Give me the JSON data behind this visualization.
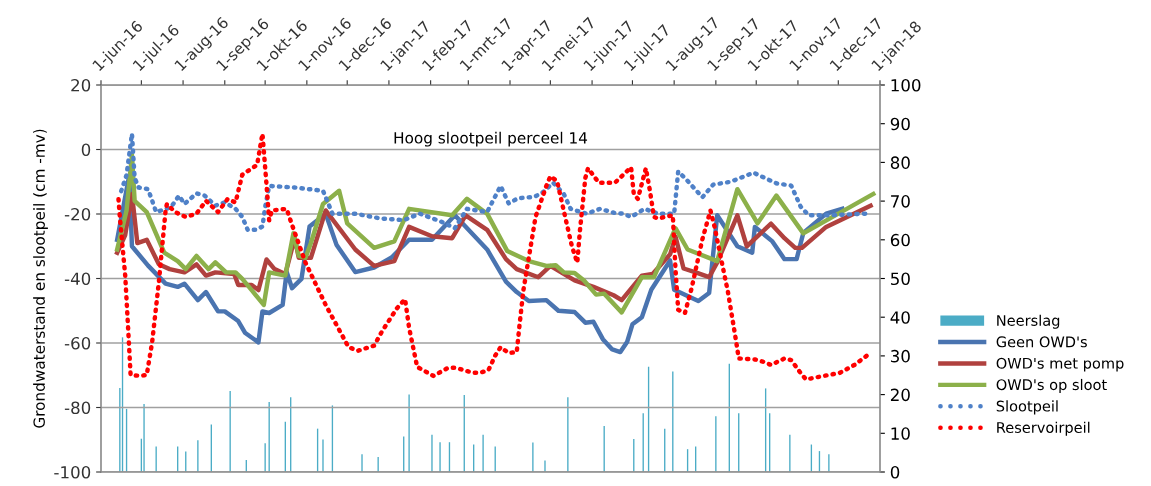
{
  "chart_data": {
    "type": "line",
    "title": "Hoog slootpeil perceel 14",
    "ylabel": "Grondwaterstand en slootpeil (cm -mv)",
    "xlim": [
      "2016-06-01",
      "2018-01-01"
    ],
    "xticks": [
      {
        "value": "2016-06-01",
        "label": "1-jun-16"
      },
      {
        "value": "2016-07-01",
        "label": "1-jul-16"
      },
      {
        "value": "2016-08-01",
        "label": "1-aug-16"
      },
      {
        "value": "2016-09-01",
        "label": "1-sep-16"
      },
      {
        "value": "2016-10-01",
        "label": "1-okt-16"
      },
      {
        "value": "2016-11-01",
        "label": "1-nov-16"
      },
      {
        "value": "2016-12-01",
        "label": "1-dec-16"
      },
      {
        "value": "2017-01-01",
        "label": "1-jan-17"
      },
      {
        "value": "2017-02-01",
        "label": "1-feb-17"
      },
      {
        "value": "2017-03-01",
        "label": "1-mrt-17"
      },
      {
        "value": "2017-04-01",
        "label": "1-apr-17"
      },
      {
        "value": "2017-05-01",
        "label": "1-mei-17"
      },
      {
        "value": "2017-06-01",
        "label": "1-jun-17"
      },
      {
        "value": "2017-07-01",
        "label": "1-jul-17"
      },
      {
        "value": "2017-08-01",
        "label": "1-aug-17"
      },
      {
        "value": "2017-09-01",
        "label": "1-sep-17"
      },
      {
        "value": "2017-10-01",
        "label": "1-okt-17"
      },
      {
        "value": "2017-11-01",
        "label": "1-nov-17"
      },
      {
        "value": "2017-12-01",
        "label": "1-dec-17"
      },
      {
        "value": "2018-01-01",
        "label": "1-jan-18"
      }
    ],
    "ylim": [
      -100,
      20
    ],
    "yticks": [
      -100,
      -80,
      -60,
      -40,
      -20,
      0,
      20
    ],
    "y2lim": [
      0,
      100
    ],
    "y2ticks": [
      0,
      10,
      20,
      30,
      40,
      50,
      60,
      70,
      80,
      90,
      100
    ],
    "grid": "y",
    "legend": "right",
    "series": [
      {
        "name": "Neerslag",
        "type": "bar",
        "axis": "y2",
        "color": "#4bacc6",
        "x": [
          "2016-06-15",
          "2016-06-17",
          "2016-06-20",
          "2016-06-23",
          "2016-07-01",
          "2016-07-03",
          "2016-07-12",
          "2016-07-28",
          "2016-08-03",
          "2016-08-12",
          "2016-08-22",
          "2016-09-05",
          "2016-09-17",
          "2016-10-01",
          "2016-10-04",
          "2016-10-16",
          "2016-10-20",
          "2016-11-09",
          "2016-11-13",
          "2016-11-20",
          "2016-12-12",
          "2016-12-24",
          "2017-01-12",
          "2017-01-16",
          "2017-02-02",
          "2017-02-08",
          "2017-02-15",
          "2017-02-26",
          "2017-03-05",
          "2017-03-12",
          "2017-03-21",
          "2017-04-18",
          "2017-04-27",
          "2017-05-14",
          "2017-06-10",
          "2017-07-02",
          "2017-07-09",
          "2017-07-13",
          "2017-07-25",
          "2017-07-31",
          "2017-08-11",
          "2017-08-17",
          "2017-09-01",
          "2017-09-11",
          "2017-09-18",
          "2017-10-08",
          "2017-10-11",
          "2017-10-26",
          "2017-11-11",
          "2017-11-17",
          "2017-11-24"
        ],
        "values": [
          21.7,
          34.8,
          16.3,
          null,
          8.6,
          17.6,
          6.6,
          6.6,
          5.3,
          8.2,
          12.3,
          20.9,
          3.1,
          7.4,
          18.1,
          13,
          19.3,
          11.2,
          8.4,
          17.2,
          4.6,
          3.9,
          9.2,
          20,
          9.6,
          7.7,
          7.7,
          19.9,
          7.1,
          9.6,
          6.6,
          7.6,
          3,
          19.3,
          11.9,
          8.5,
          15.2,
          27.2,
          11.2,
          26,
          5.9,
          6.6,
          14.4,
          28,
          15.2,
          21.6,
          15.2,
          9.6,
          7.1,
          5.4,
          4.6
        ]
      },
      {
        "name": "Geen OWD's",
        "line_style": "solid",
        "color": "#4a74b0",
        "x": [
          "2016-06-13",
          "2016-06-22",
          "2016-06-24",
          "2016-07-06",
          "2016-07-19",
          "2016-07-28",
          "2016-08-02",
          "2016-08-12",
          "2016-08-18",
          "2016-08-27",
          "2016-09-01",
          "2016-09-11",
          "2016-09-16",
          "2016-09-26",
          "2016-09-29",
          "2016-10-04",
          "2016-10-14",
          "2016-10-17",
          "2016-10-21",
          "2016-10-28",
          "2016-11-03",
          "2016-11-15",
          "2016-11-23",
          "2016-12-07",
          "2016-12-21",
          "2017-01-03",
          "2017-01-16",
          "2017-02-02",
          "2017-02-19",
          "2017-03-15",
          "2017-03-29",
          "2017-04-06",
          "2017-04-15",
          "2017-04-28",
          "2017-05-07",
          "2017-05-19",
          "2017-05-27",
          "2017-06-02",
          "2017-06-09",
          "2017-06-16",
          "2017-06-22",
          "2017-06-27",
          "2017-07-01",
          "2017-07-08",
          "2017-07-15",
          "2017-07-29",
          "2017-08-01",
          "2017-08-19",
          "2017-08-27",
          "2017-09-02",
          "2017-09-17",
          "2017-09-28",
          "2017-09-30",
          "2017-10-13",
          "2017-10-22",
          "2017-10-31",
          "2017-11-05",
          "2017-11-22",
          "2017-12-04"
        ],
        "values": [
          -28,
          -8,
          -30,
          -36,
          -41.6,
          -42.6,
          -41.6,
          -46.7,
          -44.2,
          -50.2,
          -50.2,
          -53.2,
          -56.8,
          -59.8,
          -50.2,
          -50.7,
          -48.2,
          -38,
          -43,
          -40.1,
          -23.9,
          -19.9,
          -29.5,
          -38,
          -36.6,
          -33.5,
          -28,
          -28,
          -20.4,
          -31,
          -41,
          -44.2,
          -47,
          -46.7,
          -50,
          -50.4,
          -53.7,
          -53.4,
          -58.8,
          -62,
          -62.8,
          -59.7,
          -54.2,
          -52,
          -43.5,
          -34.4,
          -43.5,
          -47,
          -44.5,
          -20.4,
          -30,
          -32,
          -24,
          -28.5,
          -34,
          -34,
          -25.9,
          -19.9,
          -18.4
        ]
      },
      {
        "name": "OWD's met pomp",
        "line_style": "solid",
        "color": "#b0413e",
        "x": [
          "2016-06-13",
          "2016-06-19",
          "2016-06-24",
          "2016-06-28",
          "2016-07-05",
          "2016-07-14",
          "2016-07-22",
          "2016-08-02",
          "2016-08-11",
          "2016-08-18",
          "2016-08-25",
          "2016-09-08",
          "2016-09-11",
          "2016-09-21",
          "2016-09-26",
          "2016-10-02",
          "2016-10-08",
          "2016-10-16",
          "2016-10-23",
          "2016-10-26",
          "2016-11-04",
          "2016-11-15",
          "2016-12-07",
          "2016-12-21",
          "2017-01-05",
          "2017-01-16",
          "2017-02-02",
          "2017-02-17",
          "2017-02-27",
          "2017-03-15",
          "2017-03-29",
          "2017-04-06",
          "2017-04-22",
          "2017-05-01",
          "2017-05-19",
          "2017-06-02",
          "2017-06-17",
          "2017-06-23",
          "2017-07-08",
          "2017-07-16",
          "2017-07-29",
          "2017-08-02",
          "2017-08-08",
          "2017-08-17",
          "2017-08-27",
          "2017-09-02",
          "2017-09-17",
          "2017-09-24",
          "2017-10-12",
          "2017-10-22",
          "2017-10-30",
          "2017-11-04",
          "2017-11-22",
          "2017-12-25"
        ],
        "values": [
          -32,
          -26.5,
          -13.8,
          -29,
          -28,
          -35.6,
          -37.1,
          -38.1,
          -35.6,
          -39.1,
          -38.1,
          -38.6,
          -42,
          -42,
          -43.6,
          -34.1,
          -37.1,
          -38.6,
          -27.5,
          -33.6,
          -33.6,
          -18.9,
          -31,
          -36.1,
          -34.6,
          -24,
          -26.9,
          -27.5,
          -20.4,
          -24.9,
          -34,
          -37.1,
          -39.6,
          -36.1,
          -40.6,
          -42.6,
          -45.2,
          -46.7,
          -39.1,
          -38.6,
          -32.5,
          -27,
          -36.9,
          -38.1,
          -39.6,
          -35,
          -20.4,
          -30,
          -23,
          -27.5,
          -30.5,
          -30.5,
          -24,
          -17.4
        ]
      },
      {
        "name": "OWD's op sloot",
        "line_style": "solid",
        "color": "#8cb04a",
        "x": [
          "2016-06-13",
          "2016-06-20",
          "2016-06-24",
          "2016-06-26",
          "2016-07-05",
          "2016-07-18",
          "2016-07-28",
          "2016-08-03",
          "2016-08-11",
          "2016-08-20",
          "2016-08-25",
          "2016-09-02",
          "2016-09-09",
          "2016-09-14",
          "2016-09-21",
          "2016-09-30",
          "2016-10-04",
          "2016-10-16",
          "2016-10-22",
          "2016-10-26",
          "2016-10-31",
          "2016-11-04",
          "2016-11-13",
          "2016-11-25",
          "2016-12-01",
          "2016-12-21",
          "2017-01-05",
          "2017-01-16",
          "2017-02-17",
          "2017-02-28",
          "2017-03-15",
          "2017-03-30",
          "2017-04-15",
          "2017-04-28",
          "2017-05-05",
          "2017-05-11",
          "2017-05-19",
          "2017-05-26",
          "2017-06-04",
          "2017-06-10",
          "2017-06-23",
          "2017-07-08",
          "2017-07-17",
          "2017-08-02",
          "2017-08-11",
          "2017-09-02",
          "2017-09-17",
          "2017-10-02",
          "2017-10-16",
          "2017-11-05",
          "2017-12-27"
        ],
        "values": [
          -31,
          -18.9,
          -1.7,
          -15.9,
          -19.4,
          -32,
          -34.6,
          -37.1,
          -33,
          -37.1,
          -35,
          -38.1,
          -38.1,
          -40.1,
          -43.6,
          -48.2,
          -38.1,
          -39.1,
          -26,
          -33,
          -33.6,
          -29,
          -16.9,
          -12.8,
          -22.9,
          -30.5,
          -28.5,
          -18.4,
          -20.4,
          -15.3,
          -19.9,
          -31.5,
          -34.6,
          -36.1,
          -35.9,
          -38.1,
          -38.3,
          -40.6,
          -45,
          -44.7,
          -50.5,
          -39.6,
          -39.6,
          -24.4,
          -31,
          -34.6,
          -12.3,
          -22.9,
          -14.3,
          -26,
          -13.8
        ]
      },
      {
        "name": "Slootpeil",
        "line_style": "dotted",
        "color": "#4f81c8",
        "x": [
          "2016-06-16",
          "2016-06-20",
          "2016-06-24",
          "2016-06-26",
          "2016-06-29",
          "2016-07-06",
          "2016-07-12",
          "2016-07-23",
          "2016-07-29",
          "2016-08-02",
          "2016-08-11",
          "2016-08-17",
          "2016-08-25",
          "2016-09-01",
          "2016-09-09",
          "2016-09-14",
          "2016-09-18",
          "2016-09-24",
          "2016-09-29",
          "2016-10-01",
          "2016-10-04",
          "2016-10-23",
          "2016-11-13",
          "2016-11-20",
          "2016-12-07",
          "2016-12-26",
          "2017-01-12",
          "2017-01-24",
          "2017-02-09",
          "2017-02-19",
          "2017-02-28",
          "2017-03-15",
          "2017-03-25",
          "2017-03-31",
          "2017-04-07",
          "2017-04-19",
          "2017-04-25",
          "2017-05-03",
          "2017-05-11",
          "2017-05-16",
          "2017-05-28",
          "2017-06-07",
          "2017-06-18",
          "2017-06-24",
          "2017-06-30",
          "2017-07-10",
          "2017-07-20",
          "2017-08-01",
          "2017-08-04",
          "2017-08-10",
          "2017-08-22",
          "2017-08-30",
          "2017-09-12",
          "2017-09-23",
          "2017-09-29",
          "2017-10-16",
          "2017-10-27",
          "2017-11-03",
          "2017-11-09",
          "2017-11-25",
          "2017-12-21"
        ],
        "values": [
          -12.9,
          -7.9,
          4.9,
          -8.8,
          -11.8,
          -12.3,
          -19.4,
          -17.9,
          -14.3,
          -16.9,
          -13.6,
          -14.3,
          -17.4,
          -16.4,
          -18.4,
          -20.9,
          -24.9,
          -24.9,
          -23.9,
          -17.9,
          -11.3,
          -11.8,
          -12.8,
          -19.9,
          -19.9,
          -21.4,
          -21.9,
          -19.9,
          -22.4,
          -24.4,
          -18.4,
          -19.4,
          -11.3,
          -16.7,
          -15.1,
          -14.7,
          -13.4,
          -10.3,
          -13.8,
          -18.4,
          -19.9,
          -18.4,
          -19.7,
          -19.9,
          -20.9,
          -18.4,
          -19.9,
          -19.9,
          -6.8,
          -9.3,
          -14.8,
          -10.9,
          -10,
          -8.2,
          -7.2,
          -10.5,
          -11.2,
          -17.7,
          -20.4,
          -20.4,
          -19.9
        ]
      },
      {
        "name": "Reservoirpeil",
        "line_style": "dotted",
        "color": "#ff0000",
        "x": [
          "2016-06-14",
          "2016-06-15",
          "2016-06-19",
          "2016-06-21",
          "2016-06-23",
          "2016-06-30",
          "2016-07-05",
          "2016-07-09",
          "2016-07-14",
          "2016-07-19",
          "2016-07-20",
          "2016-07-26",
          "2016-08-03",
          "2016-08-11",
          "2016-08-18",
          "2016-08-27",
          "2016-09-03",
          "2016-09-09",
          "2016-09-14",
          "2016-09-25",
          "2016-09-29",
          "2016-10-02",
          "2016-10-04",
          "2016-10-06",
          "2016-10-17",
          "2016-10-21",
          "2016-10-31",
          "2016-11-15",
          "2016-12-02",
          "2016-12-09",
          "2016-12-21",
          "2016-12-27",
          "2017-01-07",
          "2017-01-13",
          "2017-01-16",
          "2017-01-22",
          "2017-02-03",
          "2017-02-14",
          "2017-02-20",
          "2017-03-04",
          "2017-03-10",
          "2017-03-16",
          "2017-03-21",
          "2017-03-25",
          "2017-03-31",
          "2017-04-06",
          "2017-04-08",
          "2017-04-11",
          "2017-04-20",
          "2017-04-28",
          "2017-05-01",
          "2017-05-06",
          "2017-05-12",
          "2017-05-17",
          "2017-05-21",
          "2017-05-23",
          "2017-05-27",
          "2017-05-29",
          "2017-06-06",
          "2017-06-18",
          "2017-06-30",
          "2017-07-02",
          "2017-07-05",
          "2017-07-11",
          "2017-07-14",
          "2017-07-17",
          "2017-07-20",
          "2017-07-31",
          "2017-08-02",
          "2017-08-04",
          "2017-08-09",
          "2017-08-14",
          "2017-08-22",
          "2017-08-28",
          "2017-08-31",
          "2017-09-05",
          "2017-09-10",
          "2017-09-16",
          "2017-09-18",
          "2017-09-30",
          "2017-10-06",
          "2017-10-12",
          "2017-10-22",
          "2017-10-27",
          "2017-11-03",
          "2017-11-07",
          "2017-11-19",
          "2017-12-02",
          "2017-12-13",
          "2017-12-22"
        ],
        "values": [
          -15.4,
          -20.9,
          -39.1,
          -54.2,
          -69.9,
          -70.2,
          -69.9,
          -59.8,
          -41.1,
          -18.9,
          -16.9,
          -19.4,
          -20.9,
          -19.9,
          -15.9,
          -19.4,
          -15.4,
          -16.4,
          -7.8,
          -4.8,
          4.9,
          -10.8,
          -22,
          -18.9,
          -18.4,
          -23.4,
          -35.1,
          -48.2,
          -61.3,
          -62.4,
          -60.8,
          -56.3,
          -49.2,
          -46.4,
          -55.3,
          -67.4,
          -70.2,
          -67.7,
          -67.7,
          -69.2,
          -69.2,
          -68.4,
          -63.9,
          -61.3,
          -63.1,
          -62.8,
          -54.7,
          -43.5,
          -20.9,
          -11.3,
          -8.3,
          -9.8,
          -20.9,
          -30,
          -35.1,
          -25,
          -8.8,
          -5.8,
          -10.3,
          -10.3,
          -5.5,
          -13.8,
          -15.3,
          -5.8,
          -12.8,
          -20.9,
          -21.4,
          -20.4,
          -37.1,
          -49.7,
          -50.7,
          -43,
          -27.8,
          -18.9,
          -23.9,
          -34.1,
          -44.2,
          -59.3,
          -64.8,
          -65.1,
          -65.8,
          -66.8,
          -64.8,
          -65.3,
          -69.3,
          -71.3,
          -70.3,
          -69.3,
          -66.8,
          -64
        ]
      }
    ]
  }
}
